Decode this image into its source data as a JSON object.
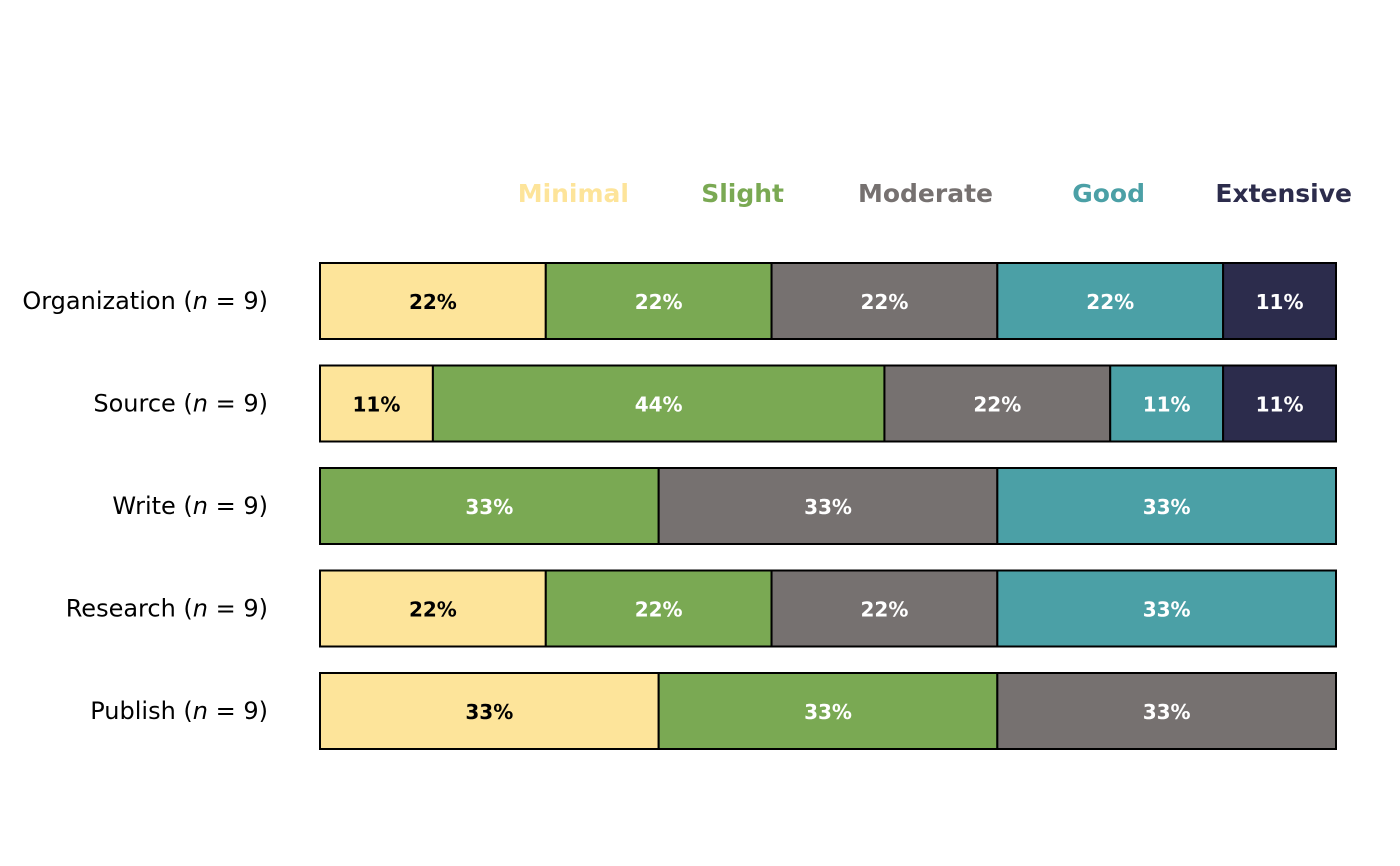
{
  "chart_data": {
    "type": "bar",
    "orientation": "horizontal",
    "stacked": "percent",
    "title": "",
    "xlabel": "",
    "ylabel": "",
    "xlim": [
      0,
      100
    ],
    "grid": false,
    "legend_position": "top-right",
    "legend": [
      {
        "key": "Minimal",
        "label": "Minimal",
        "color": "#FDE49A"
      },
      {
        "key": "Slight",
        "label": "Slight",
        "color": "#7AA953"
      },
      {
        "key": "Moderate",
        "label": "Moderate",
        "color": "#767170"
      },
      {
        "key": "Good",
        "label": "Good",
        "color": "#4BA0A6"
      },
      {
        "key": "Extensive",
        "label": "Extensive",
        "color": "#2C2C4C"
      }
    ],
    "categories": [
      {
        "name": "Organization",
        "n_label": "n",
        "n_value": "= 9"
      },
      {
        "name": "Source",
        "n_label": "n",
        "n_value": "= 9"
      },
      {
        "name": "Write",
        "n_label": "n",
        "n_value": "= 9"
      },
      {
        "name": "Research",
        "n_label": "n",
        "n_value": "= 9"
      },
      {
        "name": "Publish",
        "n_label": "n",
        "n_value": "= 9"
      }
    ],
    "series": [
      {
        "name": "Minimal",
        "values": [
          22,
          11,
          0,
          22,
          33
        ],
        "labels": [
          "22%",
          "11%",
          "",
          "22%",
          "33%"
        ],
        "label_color": "#000000"
      },
      {
        "name": "Slight",
        "values": [
          22,
          44,
          33,
          22,
          33
        ],
        "labels": [
          "22%",
          "44%",
          "33%",
          "22%",
          "33%"
        ],
        "label_color": "#FFFFFF"
      },
      {
        "name": "Moderate",
        "values": [
          22,
          22,
          33,
          22,
          33
        ],
        "labels": [
          "22%",
          "22%",
          "33%",
          "22%",
          "33%"
        ],
        "label_color": "#FFFFFF"
      },
      {
        "name": "Good",
        "values": [
          22,
          11,
          33,
          33,
          0
        ],
        "labels": [
          "22%",
          "11%",
          "33%",
          "33%",
          ""
        ],
        "label_color": "#FFFFFF"
      },
      {
        "name": "Extensive",
        "values": [
          11,
          11,
          0,
          0,
          0
        ],
        "labels": [
          "11%",
          "11%",
          "",
          "",
          ""
        ],
        "label_color": "#FFFFFF"
      }
    ]
  }
}
